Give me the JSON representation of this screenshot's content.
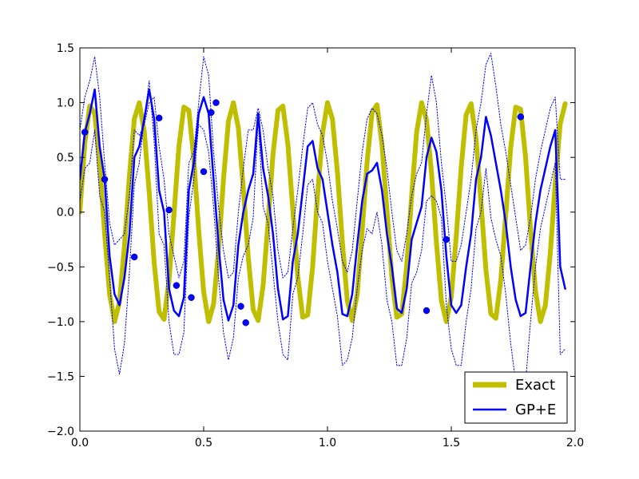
{
  "chart_data": {
    "type": "line",
    "title": "",
    "xlabel": "",
    "ylabel": "",
    "xlim": [
      0.0,
      2.0
    ],
    "ylim": [
      -2.0,
      1.5
    ],
    "x_ticks": [
      0.0,
      0.5,
      1.0,
      1.5,
      2.0
    ],
    "x_tick_labels": [
      "0.0",
      "0.5",
      "1.0",
      "1.5",
      "2.0"
    ],
    "y_ticks": [
      -2.0,
      -1.5,
      -1.0,
      -0.5,
      0.0,
      0.5,
      1.0,
      1.5
    ],
    "y_tick_labels": [
      "−2.0",
      "−1.5",
      "−1.0",
      "−0.5",
      "0.0",
      "0.5",
      "1.0",
      "1.5"
    ],
    "grid": false,
    "legend_position": "bottom-right",
    "series": [
      {
        "name": "Exact",
        "style": "thick-solid",
        "color": "#bfbf00",
        "x": [
          0.0,
          0.02,
          0.04,
          0.06,
          0.08,
          0.1,
          0.12,
          0.14,
          0.16,
          0.18,
          0.2,
          0.22,
          0.24,
          0.26,
          0.28,
          0.3,
          0.32,
          0.34,
          0.36,
          0.38,
          0.4,
          0.42,
          0.44,
          0.46,
          0.48,
          0.5,
          0.52,
          0.54,
          0.56,
          0.58,
          0.6,
          0.62,
          0.64,
          0.66,
          0.68,
          0.7,
          0.72,
          0.74,
          0.76,
          0.78,
          0.8,
          0.82,
          0.84,
          0.86,
          0.88,
          0.9,
          0.92,
          0.94,
          0.96,
          0.98,
          1.0,
          1.02,
          1.04,
          1.06,
          1.08,
          1.1,
          1.12,
          1.14,
          1.16,
          1.18,
          1.2,
          1.22,
          1.24,
          1.26,
          1.28,
          1.3,
          1.32,
          1.34,
          1.36,
          1.38,
          1.4,
          1.42,
          1.44,
          1.46,
          1.48,
          1.5,
          1.52,
          1.54,
          1.56,
          1.58,
          1.6,
          1.62,
          1.64,
          1.66,
          1.68,
          1.7,
          1.72,
          1.74,
          1.76,
          1.78,
          1.8,
          1.82,
          1.84,
          1.86,
          1.88,
          1.9,
          1.92,
          1.94,
          1.96
        ],
        "y": [
          0.0,
          0.63,
          0.97,
          0.9,
          0.45,
          -0.2,
          -0.75,
          -1.0,
          -0.82,
          -0.31,
          0.33,
          0.85,
          1.0,
          0.74,
          0.18,
          -0.46,
          -0.91,
          -0.98,
          -0.62,
          -0.02,
          0.6,
          0.96,
          0.93,
          0.49,
          -0.17,
          -0.73,
          -1.0,
          -0.84,
          -0.35,
          0.3,
          0.83,
          1.0,
          0.77,
          0.22,
          -0.41,
          -0.89,
          -0.99,
          -0.67,
          -0.09,
          0.53,
          0.93,
          0.97,
          0.62,
          0.02,
          -0.59,
          -0.96,
          -0.94,
          -0.5,
          0.16,
          0.72,
          1.0,
          0.85,
          0.37,
          -0.27,
          -0.81,
          -0.99,
          -0.75,
          -0.17,
          0.46,
          0.91,
          0.98,
          0.62,
          0.02,
          -0.59,
          -0.96,
          -0.93,
          -0.49,
          0.15,
          0.73,
          1.0,
          0.84,
          0.36,
          -0.28,
          -0.81,
          -1.0,
          -0.77,
          -0.22,
          0.41,
          0.89,
          0.99,
          0.67,
          0.09,
          -0.53,
          -0.93,
          -0.97,
          -0.62,
          -0.02,
          0.59,
          0.96,
          0.94,
          0.5,
          -0.16,
          -0.72,
          -1.0,
          -0.85,
          -0.37,
          0.27,
          0.81,
          0.99
        ]
      },
      {
        "name": "GP+E",
        "style": "solid",
        "color": "#0000ff",
        "x": [
          0.0,
          0.02,
          0.04,
          0.06,
          0.08,
          0.1,
          0.12,
          0.14,
          0.16,
          0.18,
          0.2,
          0.22,
          0.24,
          0.26,
          0.28,
          0.3,
          0.32,
          0.34,
          0.36,
          0.38,
          0.4,
          0.42,
          0.44,
          0.46,
          0.48,
          0.5,
          0.52,
          0.54,
          0.56,
          0.58,
          0.6,
          0.62,
          0.64,
          0.66,
          0.68,
          0.7,
          0.72,
          0.74,
          0.76,
          0.78,
          0.8,
          0.82,
          0.84,
          0.86,
          0.88,
          0.9,
          0.92,
          0.94,
          0.96,
          0.98,
          1.0,
          1.02,
          1.04,
          1.06,
          1.08,
          1.1,
          1.12,
          1.14,
          1.16,
          1.18,
          1.2,
          1.22,
          1.24,
          1.26,
          1.28,
          1.3,
          1.32,
          1.34,
          1.36,
          1.38,
          1.4,
          1.42,
          1.44,
          1.46,
          1.48,
          1.5,
          1.52,
          1.54,
          1.56,
          1.58,
          1.6,
          1.62,
          1.64,
          1.66,
          1.68,
          1.7,
          1.72,
          1.74,
          1.76,
          1.78,
          1.8,
          1.82,
          1.84,
          1.86,
          1.88,
          1.9,
          1.92,
          1.94,
          1.96
        ],
        "y": [
          0.3,
          0.73,
          0.9,
          1.12,
          0.6,
          0.3,
          -0.4,
          -0.75,
          -0.85,
          -0.6,
          -0.2,
          0.5,
          0.6,
          0.85,
          1.12,
          0.85,
          0.2,
          0.0,
          -0.7,
          -0.9,
          -0.95,
          -0.78,
          0.2,
          0.45,
          0.9,
          1.05,
          0.9,
          0.3,
          -0.3,
          -0.8,
          -0.99,
          -0.85,
          -0.3,
          0.0,
          0.2,
          0.35,
          0.9,
          0.4,
          0.15,
          -0.2,
          -0.7,
          -0.98,
          -0.95,
          -0.45,
          -0.2,
          0.2,
          0.6,
          0.65,
          0.4,
          0.3,
          0.0,
          -0.3,
          -0.55,
          -0.93,
          -0.95,
          -0.75,
          -0.3,
          0.1,
          0.35,
          0.38,
          0.45,
          0.2,
          -0.2,
          -0.5,
          -0.88,
          -0.92,
          -0.7,
          -0.25,
          -0.1,
          0.05,
          0.5,
          0.68,
          0.55,
          0.2,
          -0.4,
          -0.85,
          -0.92,
          -0.85,
          -0.5,
          -0.2,
          0.3,
          0.5,
          0.87,
          0.7,
          0.45,
          0.2,
          -0.1,
          -0.5,
          -0.8,
          -0.95,
          -0.92,
          -0.5,
          -0.1,
          0.2,
          0.4,
          0.6,
          0.75,
          -0.5,
          -0.7
        ]
      },
      {
        "name": "",
        "style": "dotted-upper-band",
        "color": "#0000ff",
        "x": [
          0.0,
          0.02,
          0.04,
          0.06,
          0.08,
          0.1,
          0.12,
          0.14,
          0.16,
          0.18,
          0.2,
          0.22,
          0.24,
          0.26,
          0.28,
          0.3,
          0.32,
          0.34,
          0.36,
          0.38,
          0.4,
          0.42,
          0.44,
          0.46,
          0.48,
          0.5,
          0.52,
          0.54,
          0.56,
          0.58,
          0.6,
          0.62,
          0.64,
          0.66,
          0.68,
          0.7,
          0.72,
          0.74,
          0.76,
          0.78,
          0.8,
          0.82,
          0.84,
          0.86,
          0.88,
          0.9,
          0.92,
          0.94,
          0.96,
          0.98,
          1.0,
          1.02,
          1.04,
          1.06,
          1.08,
          1.1,
          1.12,
          1.14,
          1.16,
          1.18,
          1.2,
          1.22,
          1.24,
          1.26,
          1.28,
          1.3,
          1.32,
          1.34,
          1.36,
          1.38,
          1.4,
          1.42,
          1.44,
          1.46,
          1.48,
          1.5,
          1.52,
          1.54,
          1.56,
          1.58,
          1.6,
          1.62,
          1.64,
          1.66,
          1.68,
          1.7,
          1.72,
          1.74,
          1.76,
          1.78,
          1.8,
          1.82,
          1.84,
          1.86,
          1.88,
          1.9,
          1.92,
          1.94,
          1.96
        ],
        "y": [
          0.75,
          1.05,
          1.2,
          1.42,
          1.05,
          0.45,
          -0.1,
          -0.3,
          -0.25,
          -0.2,
          0.15,
          0.75,
          0.7,
          0.8,
          1.0,
          1.05,
          0.6,
          0.3,
          -0.2,
          -0.4,
          -0.6,
          -0.45,
          0.45,
          0.55,
          1.0,
          1.42,
          1.25,
          0.55,
          0.05,
          -0.35,
          -0.6,
          -0.55,
          0.0,
          0.4,
          0.75,
          0.75,
          0.95,
          0.75,
          0.4,
          0.15,
          -0.35,
          -0.6,
          -0.55,
          -0.15,
          0.2,
          0.6,
          0.95,
          1.0,
          0.8,
          0.7,
          0.45,
          0.1,
          -0.15,
          -0.45,
          -0.55,
          -0.35,
          0.1,
          0.55,
          0.85,
          0.95,
          0.9,
          0.7,
          0.4,
          0.0,
          -0.35,
          -0.45,
          -0.2,
          0.15,
          0.35,
          0.45,
          0.9,
          1.25,
          1.0,
          0.45,
          0.05,
          -0.45,
          -0.45,
          -0.3,
          0.0,
          0.3,
          0.75,
          1.0,
          1.35,
          1.45,
          1.15,
          0.8,
          0.55,
          0.25,
          -0.05,
          -0.35,
          -0.3,
          -0.05,
          0.3,
          0.55,
          0.75,
          0.95,
          1.05,
          0.3,
          0.3
        ]
      },
      {
        "name": "",
        "style": "dotted-lower-band",
        "color": "#0000ff",
        "x": [
          0.0,
          0.02,
          0.04,
          0.06,
          0.08,
          0.1,
          0.12,
          0.14,
          0.16,
          0.18,
          0.2,
          0.22,
          0.24,
          0.26,
          0.28,
          0.3,
          0.32,
          0.34,
          0.36,
          0.38,
          0.4,
          0.42,
          0.44,
          0.46,
          0.48,
          0.5,
          0.52,
          0.54,
          0.56,
          0.58,
          0.6,
          0.62,
          0.64,
          0.66,
          0.68,
          0.7,
          0.72,
          0.74,
          0.76,
          0.78,
          0.8,
          0.82,
          0.84,
          0.86,
          0.88,
          0.9,
          0.92,
          0.94,
          0.96,
          0.98,
          1.0,
          1.02,
          1.04,
          1.06,
          1.08,
          1.1,
          1.12,
          1.14,
          1.16,
          1.18,
          1.2,
          1.22,
          1.24,
          1.26,
          1.28,
          1.3,
          1.32,
          1.34,
          1.36,
          1.38,
          1.4,
          1.42,
          1.44,
          1.46,
          1.48,
          1.5,
          1.52,
          1.54,
          1.56,
          1.58,
          1.6,
          1.62,
          1.64,
          1.66,
          1.68,
          1.7,
          1.72,
          1.74,
          1.76,
          1.78,
          1.8,
          1.82,
          1.84,
          1.86,
          1.88,
          1.9,
          1.92,
          1.94,
          1.96
        ],
        "y": [
          0.1,
          0.4,
          0.45,
          0.75,
          0.15,
          0.0,
          -0.6,
          -1.25,
          -1.48,
          -1.2,
          -0.55,
          0.25,
          0.45,
          0.85,
          1.2,
          0.65,
          -0.2,
          -0.3,
          -1.0,
          -1.3,
          -1.3,
          -1.1,
          -0.05,
          0.3,
          0.8,
          0.75,
          0.55,
          0.05,
          -0.6,
          -1.1,
          -1.35,
          -1.15,
          -0.6,
          -0.4,
          -0.3,
          -0.05,
          0.85,
          0.05,
          -0.1,
          -0.55,
          -1.0,
          -1.3,
          -1.35,
          -0.75,
          -0.6,
          -0.2,
          0.25,
          0.3,
          0.0,
          -0.1,
          -0.45,
          -0.7,
          -0.95,
          -1.4,
          -1.35,
          -1.15,
          -0.7,
          -0.35,
          -0.15,
          -0.2,
          0.0,
          -0.3,
          -0.8,
          -1.0,
          -1.4,
          -1.4,
          -1.15,
          -0.65,
          -0.55,
          -0.35,
          0.1,
          0.15,
          0.1,
          -0.05,
          -0.85,
          -1.25,
          -1.4,
          -1.4,
          -1.0,
          -0.7,
          -0.15,
          0.0,
          0.4,
          -0.05,
          -0.25,
          -0.4,
          -0.75,
          -1.2,
          -1.55,
          -1.55,
          -1.55,
          -1.0,
          -0.5,
          -0.15,
          0.05,
          0.25,
          0.45,
          -1.3,
          -1.25
        ]
      }
    ],
    "points": {
      "name": "",
      "color": "#0000ff",
      "x": [
        0.02,
        0.1,
        0.22,
        0.32,
        0.36,
        0.39,
        0.45,
        0.5,
        0.53,
        0.55,
        0.65,
        0.67,
        1.4,
        1.48,
        1.78
      ],
      "y": [
        0.73,
        0.3,
        -0.41,
        0.86,
        0.02,
        -0.67,
        -0.78,
        0.37,
        0.91,
        1.0,
        -0.86,
        -1.01,
        -0.9,
        -0.25,
        0.87
      ]
    },
    "legend": {
      "items": [
        {
          "label": "Exact",
          "color": "#bfbf00",
          "style": "thick-solid"
        },
        {
          "label": "GP+E",
          "color": "#0000ff",
          "style": "solid"
        }
      ]
    }
  }
}
